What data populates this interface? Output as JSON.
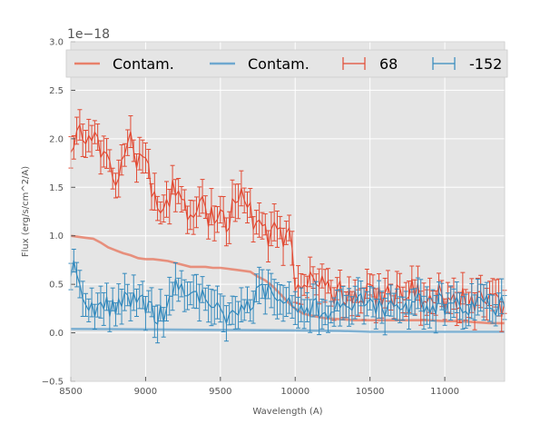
{
  "chart_data": {
    "type": "line",
    "xlabel": "Wavelength (A)",
    "ylabel": "Flux (erg/s/cm^2/A)",
    "offset_text": "1e−18",
    "xlim": [
      8500,
      11400
    ],
    "ylim": [
      -0.5,
      3.0
    ],
    "xticks": [
      8500,
      9000,
      9500,
      10000,
      10500,
      11000
    ],
    "yticks": [
      -0.5,
      0.0,
      0.5,
      1.0,
      1.5,
      2.0,
      2.5,
      3.0
    ],
    "ytick_labels": [
      "−0.5",
      "0.0",
      "0.5",
      "1.0",
      "1.5",
      "2.0",
      "2.5",
      "3.0"
    ],
    "grid": true,
    "legend": {
      "placement": "top",
      "entries": [
        {
          "label": "Contam.",
          "kind": "line",
          "color": "#E8806A"
        },
        {
          "label": "Contam.",
          "kind": "line",
          "color": "#6FA8CF"
        },
        {
          "label": "68",
          "kind": "errorbar",
          "color": "#E24A33"
        },
        {
          "label": "-152",
          "kind": "errorbar",
          "color": "#348ABD"
        }
      ]
    },
    "series": [
      {
        "name": "68",
        "kind": "errorbar",
        "color": "#E24A33",
        "anchors_x": [
          8500,
          8550,
          8600,
          8650,
          8700,
          8750,
          8800,
          8850,
          8900,
          8950,
          9000,
          9050,
          9100,
          9150,
          9200,
          9250,
          9300,
          9350,
          9400,
          9450,
          9500,
          9550,
          9600,
          9650,
          9700,
          9750,
          9800,
          9850,
          9900,
          9950,
          9980,
          10000,
          10050,
          10100,
          10200,
          10300,
          10400,
          10500,
          10600,
          10700,
          10800,
          10900,
          11000,
          11100,
          11200,
          11300,
          11400
        ],
        "anchors_y": [
          2.0,
          2.05,
          1.9,
          2.15,
          1.85,
          1.7,
          1.6,
          1.75,
          1.95,
          1.8,
          1.85,
          1.4,
          1.35,
          1.3,
          1.55,
          1.3,
          1.2,
          1.3,
          1.25,
          1.2,
          1.2,
          1.15,
          1.45,
          1.5,
          1.25,
          1.1,
          1.05,
          1.0,
          1.0,
          0.98,
          1.0,
          0.5,
          0.48,
          0.5,
          0.45,
          0.4,
          0.45,
          0.42,
          0.4,
          0.4,
          0.42,
          0.35,
          0.38,
          0.35,
          0.35,
          0.3,
          0.3
        ],
        "step": 20,
        "noise_amplitude": 0.14,
        "error": 0.15
      },
      {
        "name": "-152",
        "kind": "errorbar",
        "color": "#348ABD",
        "anchors_x": [
          8500,
          8550,
          8600,
          8700,
          8800,
          8900,
          9000,
          9100,
          9150,
          9200,
          9300,
          9400,
          9500,
          9600,
          9700,
          9800,
          9900,
          10000,
          10100,
          10200,
          10300,
          10400,
          10500,
          10600,
          10700,
          10800,
          10900,
          11000,
          11100,
          11200,
          11300,
          11400
        ],
        "anchors_y": [
          0.7,
          0.55,
          0.25,
          0.25,
          0.3,
          0.35,
          0.25,
          0.2,
          0.25,
          0.55,
          0.45,
          0.3,
          0.2,
          0.2,
          0.35,
          0.4,
          0.35,
          0.3,
          0.25,
          0.25,
          0.25,
          0.3,
          0.3,
          0.28,
          0.3,
          0.3,
          0.3,
          0.3,
          0.3,
          0.28,
          0.28,
          0.3
        ],
        "step": 20,
        "noise_amplitude": 0.12,
        "error": 0.15
      },
      {
        "name": "Contam.",
        "kind": "line",
        "color": "#E8806A",
        "x": [
          8500,
          8550,
          8600,
          8650,
          8700,
          8750,
          8800,
          8850,
          8900,
          8950,
          9000,
          9050,
          9100,
          9150,
          9200,
          9250,
          9300,
          9350,
          9400,
          9450,
          9500,
          9550,
          9600,
          9650,
          9700,
          9750,
          9800,
          9850,
          9900,
          9950,
          10000,
          10050,
          10100,
          10200,
          10300,
          10400,
          10500,
          10600,
          10700,
          10800,
          10900,
          11000,
          11100,
          11200,
          11300,
          11400
        ],
        "y": [
          1.0,
          0.99,
          0.98,
          0.97,
          0.93,
          0.88,
          0.85,
          0.82,
          0.8,
          0.77,
          0.76,
          0.76,
          0.75,
          0.74,
          0.72,
          0.7,
          0.68,
          0.68,
          0.68,
          0.67,
          0.67,
          0.66,
          0.65,
          0.64,
          0.63,
          0.58,
          0.54,
          0.48,
          0.4,
          0.32,
          0.25,
          0.2,
          0.18,
          0.15,
          0.14,
          0.13,
          0.13,
          0.13,
          0.13,
          0.13,
          0.13,
          0.12,
          0.12,
          0.11,
          0.1,
          0.1
        ]
      },
      {
        "name": "Contam.",
        "kind": "line",
        "color": "#6FA8CF",
        "x": [
          8500,
          9000,
          9500,
          10000,
          10300,
          10500,
          11000,
          11400
        ],
        "y": [
          0.04,
          0.035,
          0.03,
          0.025,
          0.02,
          0.01,
          0.01,
          0.01
        ]
      }
    ]
  }
}
